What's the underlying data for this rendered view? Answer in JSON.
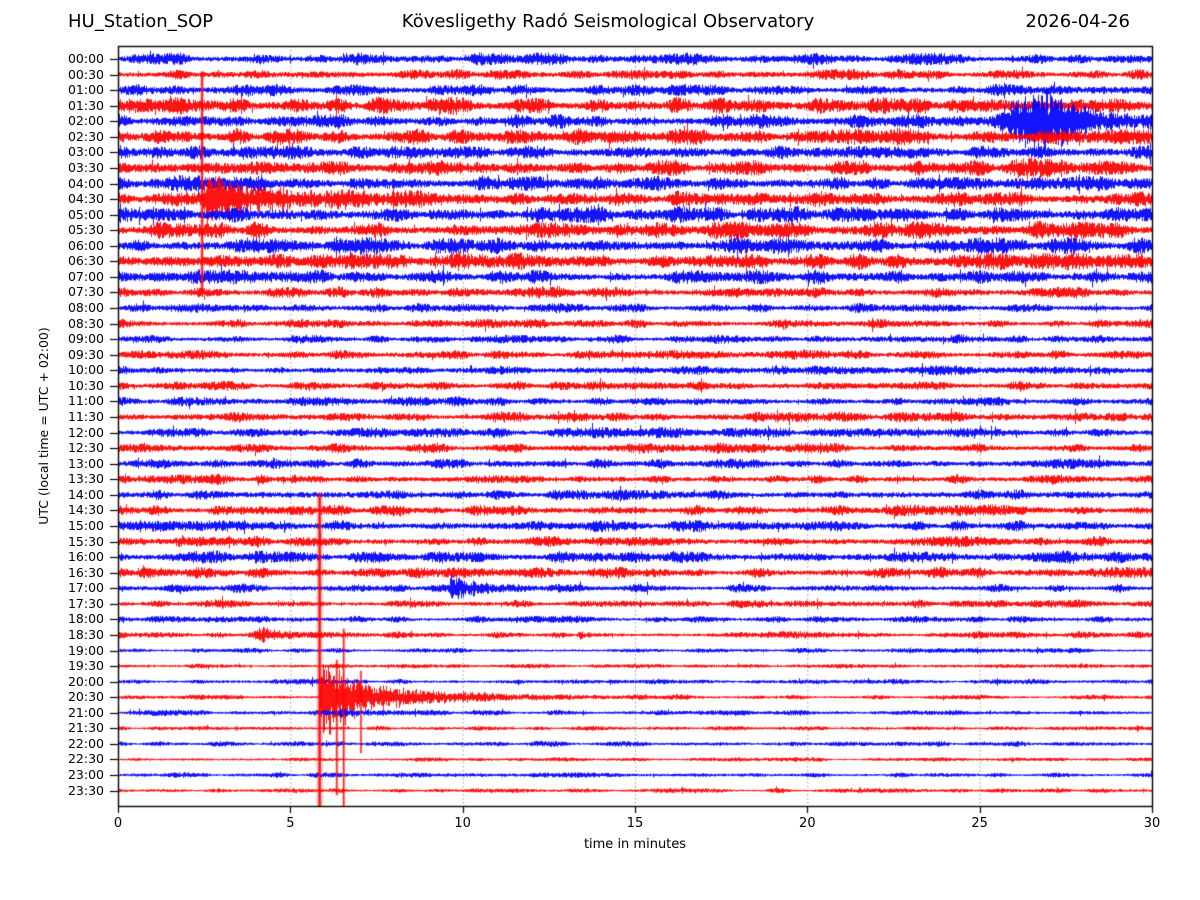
{
  "title": {
    "station": "HU_Station_SOP",
    "observatory": "Kövesligethy Radó Seismological Observatory",
    "date": "2026-04-26"
  },
  "colors": {
    "trace_blue": "#0000ff",
    "trace_red": "#ff0000",
    "grid": "#7a7a7a",
    "frame": "#000000",
    "background": "#ffffff"
  },
  "chart_data": {
    "type": "line",
    "subtype": "helicorder-seismogram",
    "ylabel": "UTC (local time = UTC + 02:00)",
    "xlabel": "time in minutes",
    "xlim": [
      0,
      30
    ],
    "xticks": [
      "0",
      "5",
      "10",
      "15",
      "20",
      "25",
      "30"
    ],
    "grid_minutes": [
      5,
      10,
      15,
      20,
      25
    ],
    "minutes_per_row": 30,
    "rows": [
      {
        "label": "00:00",
        "color": "blue",
        "amp": 3.0,
        "events": []
      },
      {
        "label": "00:30",
        "color": "red",
        "amp": 2.6,
        "events": []
      },
      {
        "label": "01:00",
        "color": "blue",
        "amp": 3.0,
        "events": [
          {
            "t0": 3.3,
            "t1": 4.6,
            "amp": 4.5,
            "attack": 0.4,
            "tau": 0.5
          }
        ]
      },
      {
        "label": "01:30",
        "color": "red",
        "amp": 4.2,
        "events": [
          {
            "t0": 24.5,
            "t1": 28.0,
            "amp": 4.5,
            "attack": 0.8,
            "tau": 1.2
          }
        ]
      },
      {
        "label": "02:00",
        "color": "blue",
        "amp": 3.8,
        "events": [
          {
            "t0": 25.4,
            "t1": 30.0,
            "amp": 32,
            "attack": 1.5,
            "tau": 0.9
          },
          {
            "t0": 25.2,
            "t1": 30.0,
            "amp": 9,
            "attack": 0.8,
            "tau": 3.0
          }
        ]
      },
      {
        "label": "02:30",
        "color": "red",
        "amp": 4.2,
        "events": []
      },
      {
        "label": "03:00",
        "color": "blue",
        "amp": 3.4,
        "events": []
      },
      {
        "label": "03:30",
        "color": "red",
        "amp": 4.0,
        "events": [
          {
            "t0": 10.2,
            "t1": 11.0,
            "amp": 5,
            "attack": 0.25,
            "tau": 0.3
          },
          {
            "t0": 25.5,
            "t1": 29.5,
            "amp": 5,
            "attack": 1.0,
            "tau": 2.0
          }
        ]
      },
      {
        "label": "04:00",
        "color": "blue",
        "amp": 4.0,
        "events": [
          {
            "t0": 10.3,
            "t1": 11.0,
            "amp": 6,
            "attack": 0.2,
            "tau": 0.3
          }
        ]
      },
      {
        "label": "04:30",
        "color": "red",
        "amp": 4.0,
        "events": [
          {
            "t0": 2.42,
            "t1": 7.0,
            "amp": 20,
            "attack": 0.1,
            "tau": 1.2
          },
          {
            "t0": 2.5,
            "t1": 11.0,
            "amp": 11,
            "attack": 0.2,
            "tau": 4.0
          }
        ]
      },
      {
        "label": "05:00",
        "color": "blue",
        "amp": 4.2,
        "events": []
      },
      {
        "label": "05:30",
        "color": "red",
        "amp": 4.4,
        "events": []
      },
      {
        "label": "06:00",
        "color": "blue",
        "amp": 4.0,
        "events": []
      },
      {
        "label": "06:30",
        "color": "red",
        "amp": 4.4,
        "events": []
      },
      {
        "label": "07:00",
        "color": "blue",
        "amp": 3.6,
        "events": []
      },
      {
        "label": "07:30",
        "color": "red",
        "amp": 3.0,
        "events": []
      },
      {
        "label": "08:00",
        "color": "blue",
        "amp": 2.4,
        "events": []
      },
      {
        "label": "08:30",
        "color": "red",
        "amp": 2.4,
        "events": []
      },
      {
        "label": "09:00",
        "color": "blue",
        "amp": 2.2,
        "events": []
      },
      {
        "label": "09:30",
        "color": "red",
        "amp": 2.4,
        "events": []
      },
      {
        "label": "10:00",
        "color": "blue",
        "amp": 2.4,
        "events": []
      },
      {
        "label": "10:30",
        "color": "red",
        "amp": 2.4,
        "events": []
      },
      {
        "label": "11:00",
        "color": "blue",
        "amp": 2.4,
        "events": []
      },
      {
        "label": "11:30",
        "color": "red",
        "amp": 2.6,
        "events": []
      },
      {
        "label": "12:00",
        "color": "blue",
        "amp": 2.6,
        "events": []
      },
      {
        "label": "12:30",
        "color": "red",
        "amp": 2.6,
        "events": []
      },
      {
        "label": "13:00",
        "color": "blue",
        "amp": 2.6,
        "events": []
      },
      {
        "label": "13:30",
        "color": "red",
        "amp": 2.6,
        "events": [
          {
            "t0": 3.95,
            "t1": 4.5,
            "amp": 9,
            "attack": 0.1,
            "tau": 0.15
          },
          {
            "t0": 5.0,
            "t1": 5.4,
            "amp": 4.5,
            "attack": 0.08,
            "tau": 0.12
          }
        ]
      },
      {
        "label": "14:00",
        "color": "blue",
        "amp": 2.6,
        "events": []
      },
      {
        "label": "14:30",
        "color": "red",
        "amp": 2.8,
        "events": []
      },
      {
        "label": "15:00",
        "color": "blue",
        "amp": 2.8,
        "events": []
      },
      {
        "label": "15:30",
        "color": "red",
        "amp": 2.8,
        "events": [
          {
            "t0": 1.5,
            "t1": 2.6,
            "amp": 5,
            "attack": 0.3,
            "tau": 0.4
          }
        ]
      },
      {
        "label": "16:00",
        "color": "blue",
        "amp": 3.0,
        "events": [
          {
            "t0": 27.3,
            "t1": 28.8,
            "amp": 4.5,
            "attack": 0.4,
            "tau": 0.5
          }
        ]
      },
      {
        "label": "16:30",
        "color": "red",
        "amp": 2.8,
        "events": [
          {
            "t0": 0.5,
            "t1": 1.3,
            "amp": 6,
            "attack": 0.2,
            "tau": 0.3
          }
        ]
      },
      {
        "label": "17:00",
        "color": "blue",
        "amp": 2.2,
        "events": [
          {
            "t0": 9.55,
            "t1": 12.0,
            "amp": 13,
            "attack": 0.12,
            "tau": 0.45
          },
          {
            "t0": 9.6,
            "t1": 12.5,
            "amp": 3.5,
            "attack": 0.2,
            "tau": 1.5
          }
        ]
      },
      {
        "label": "17:30",
        "color": "red",
        "amp": 2.0,
        "events": []
      },
      {
        "label": "18:00",
        "color": "blue",
        "amp": 1.8,
        "events": []
      },
      {
        "label": "18:30",
        "color": "red",
        "amp": 1.8,
        "events": [
          {
            "t0": 3.8,
            "t1": 5.1,
            "amp": 6,
            "attack": 0.4,
            "tau": 0.5
          },
          {
            "t0": 13.3,
            "t1": 13.8,
            "amp": 5,
            "attack": 0.1,
            "tau": 0.15
          }
        ]
      },
      {
        "label": "19:00",
        "color": "blue",
        "amp": 1.3,
        "events": []
      },
      {
        "label": "19:30",
        "color": "red",
        "amp": 1.2,
        "events": []
      },
      {
        "label": "20:00",
        "color": "blue",
        "amp": 1.4,
        "events": []
      },
      {
        "label": "20:30",
        "color": "red",
        "amp": 1.3,
        "events": [
          {
            "t0": 5.82,
            "t1": 9.0,
            "amp": 42,
            "attack": 0.12,
            "tau": 0.55
          },
          {
            "t0": 5.95,
            "t1": 13.0,
            "amp": 16,
            "attack": 0.3,
            "tau": 1.6
          },
          {
            "t0": 6.0,
            "t1": 17.0,
            "amp": 6,
            "attack": 0.5,
            "tau": 5.0
          }
        ]
      },
      {
        "label": "21:00",
        "color": "blue",
        "amp": 1.5,
        "events": [
          {
            "t0": 6.3,
            "t1": 7.0,
            "amp": 4.5,
            "attack": 0.2,
            "tau": 0.25
          }
        ]
      },
      {
        "label": "21:30",
        "color": "red",
        "amp": 1.2,
        "events": []
      },
      {
        "label": "22:00",
        "color": "blue",
        "amp": 1.4,
        "events": []
      },
      {
        "label": "22:30",
        "color": "red",
        "amp": 1.1,
        "events": []
      },
      {
        "label": "23:00",
        "color": "blue",
        "amp": 1.3,
        "events": []
      },
      {
        "label": "23:30",
        "color": "red",
        "amp": 1.2,
        "events": [
          {
            "t0": 21.4,
            "t1": 21.9,
            "amp": 2.5,
            "attack": 0.1,
            "tau": 0.15
          }
        ]
      }
    ],
    "spikes": [
      {
        "x_min": 2.44,
        "top_row": 0.8,
        "bot_row": 15.0,
        "core_w": 1.6,
        "halo_w": 4.0,
        "color": "red"
      },
      {
        "x_min": 5.85,
        "top_row": 27.9,
        "bot_row": 48.0,
        "core_w": 2.2,
        "halo_w": 6.0,
        "color": "red"
      },
      {
        "x_min": 6.35,
        "top_row": 38.6,
        "bot_row": 47.3,
        "core_w": 1.2,
        "halo_w": 3.0,
        "color": "red"
      },
      {
        "x_min": 6.55,
        "top_row": 36.6,
        "bot_row": 48.0,
        "core_w": 1.2,
        "halo_w": 3.0,
        "color": "red"
      },
      {
        "x_min": 7.05,
        "top_row": 39.3,
        "bot_row": 44.6,
        "core_w": 1.2,
        "halo_w": 2.5,
        "color": "red"
      }
    ]
  }
}
